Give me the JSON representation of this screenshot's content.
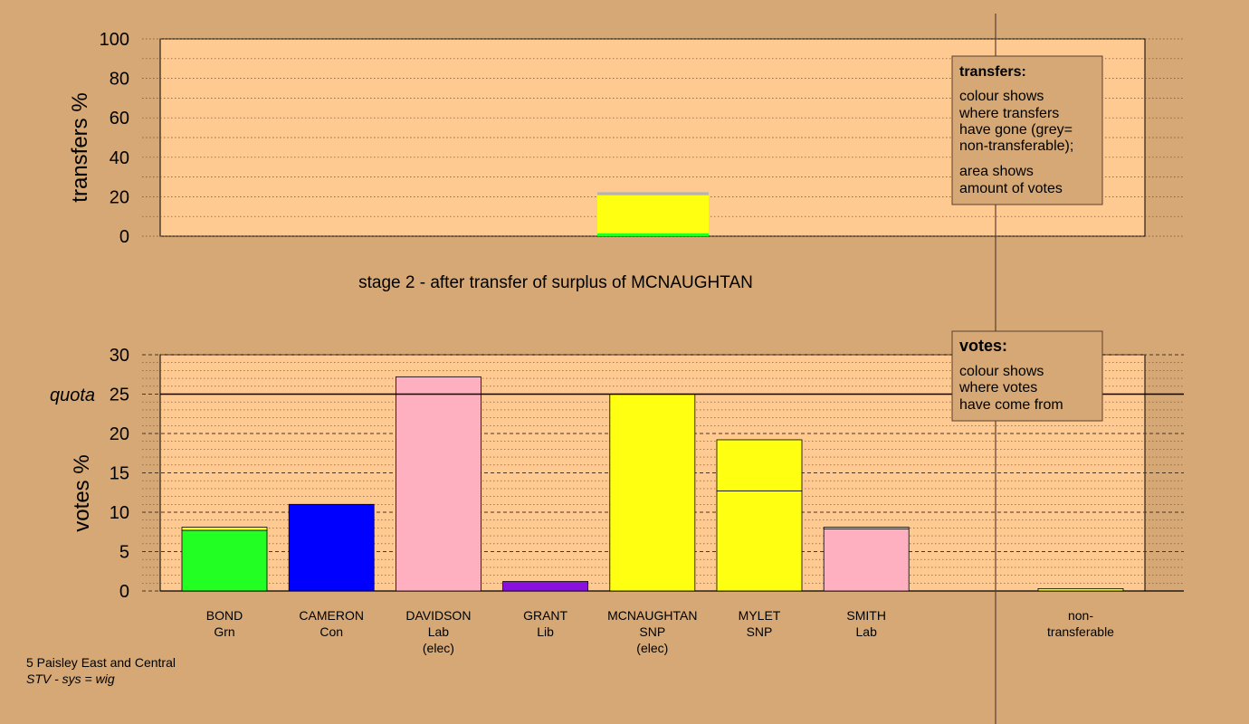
{
  "colors": {
    "background": "#d5a875",
    "plot_fill": "#ffc992",
    "grey": "#b4b4b4"
  },
  "top_chart": {
    "ylabel": "transfers %",
    "yticks": [
      "0",
      "20",
      "40",
      "60",
      "80",
      "100"
    ],
    "stage_title": "stage 2 - after transfer of surplus of MCNAUGHTAN"
  },
  "bottom_chart": {
    "ylabel": "votes %",
    "yticks": [
      "0",
      "5",
      "10",
      "15",
      "20",
      "25",
      "30"
    ],
    "quota_label": "quota"
  },
  "legend_transfers": {
    "title": "transfers:",
    "line1": "colour shows",
    "line2": "where transfers",
    "line3": "have gone (grey=",
    "line4": "non-transferable);",
    "line5": "area shows",
    "line6": "amount of votes"
  },
  "legend_votes": {
    "title": "votes:",
    "line1": "colour shows",
    "line2": "where votes",
    "line3": "have come from"
  },
  "footer": {
    "line1": "5 Paisley East and Central",
    "line2": "STV - sys = wig"
  },
  "chart_data": [
    {
      "type": "bar",
      "ylabel": "transfers %",
      "ylim": [
        0,
        100
      ],
      "stack": [
        {
          "to": "BOND",
          "value": 1.5,
          "color": "#22ff22"
        },
        {
          "to": "MYLET",
          "value": 19.3,
          "color": "#ffff11"
        },
        {
          "to": "non-transferable",
          "value": 1.5,
          "color": "#b4b4b4"
        }
      ]
    },
    {
      "type": "bar",
      "ylabel": "votes %",
      "ylim": [
        0,
        30
      ],
      "quota": 25,
      "candidates": [
        {
          "name": "BOND",
          "party": "Grn",
          "note": "",
          "segments": [
            {
              "value": 7.7,
              "color": "#22ff22"
            },
            {
              "value": 0.4,
              "color": "#ffff11"
            }
          ]
        },
        {
          "name": "CAMERON",
          "party": "Con",
          "note": "",
          "segments": [
            {
              "value": 11.0,
              "color": "#0000ff"
            }
          ]
        },
        {
          "name": "DAVIDSON",
          "party": "Lab",
          "note": "(elec)",
          "segments": [
            {
              "value": 27.2,
              "color": "#ffb0c0"
            }
          ]
        },
        {
          "name": "GRANT",
          "party": "Lib",
          "note": "",
          "segments": [
            {
              "value": 1.2,
              "color": "#8a10e0"
            }
          ]
        },
        {
          "name": "MCNAUGHTAN",
          "party": "SNP",
          "note": "(elec)",
          "segments": [
            {
              "value": 25.0,
              "color": "#ffff11"
            }
          ]
        },
        {
          "name": "MYLET",
          "party": "SNP",
          "note": "",
          "segments": [
            {
              "value": 12.7,
              "color": "#ffff11"
            },
            {
              "value": 6.5,
              "color": "#ffff11"
            }
          ]
        },
        {
          "name": "SMITH",
          "party": "Lab",
          "note": "",
          "segments": [
            {
              "value": 7.9,
              "color": "#ffb0c0"
            },
            {
              "value": 0.2,
              "color": "#ffff11"
            }
          ]
        }
      ],
      "nontransferable": {
        "name": "non-",
        "party": "transferable",
        "value": 0.3,
        "color": "#ffff11"
      }
    }
  ]
}
